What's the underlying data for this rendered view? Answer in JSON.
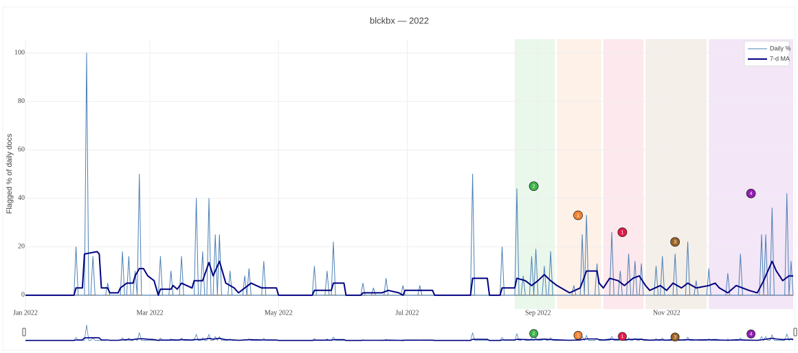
{
  "chart_data": {
    "type": "line",
    "title": "blckbx — 2022",
    "y_label": "Flagged % of daily docs",
    "xlim": [
      "2022-01-01",
      "2022-12-31"
    ],
    "xticks": [
      {
        "value": "2022-01-01",
        "label": "Jan 2022"
      },
      {
        "value": "2022-03-01",
        "label": "Mar 2022"
      },
      {
        "value": "2022-05-01",
        "label": "May 2022"
      },
      {
        "value": "2022-07-01",
        "label": "Jul 2022"
      },
      {
        "value": "2022-09-01",
        "label": "Sep 2022"
      },
      {
        "value": "2022-11-01",
        "label": "Nov 2022"
      }
    ],
    "ylim": [
      -5.7,
      105.7
    ],
    "yticks": [
      0,
      20,
      40,
      60,
      80,
      100
    ],
    "grid": true,
    "legend": "top-right",
    "range_slider": true,
    "series": [
      {
        "name": "Daily %",
        "color": "#4a7fb5",
        "width": 1,
        "x": [
          "2022-01-01",
          "2022-01-24",
          "2022-01-25",
          "2022-01-26",
          "2022-01-29",
          "2022-01-30",
          "2022-01-31",
          "2022-02-01",
          "2022-02-02",
          "2022-02-03",
          "2022-02-08",
          "2022-02-09",
          "2022-02-10",
          "2022-02-15",
          "2022-02-16",
          "2022-02-17",
          "2022-02-18",
          "2022-02-19",
          "2022-02-20",
          "2022-02-21",
          "2022-02-22",
          "2022-02-23",
          "2022-02-24",
          "2022-02-25",
          "2022-03-05",
          "2022-03-06",
          "2022-03-07",
          "2022-03-10",
          "2022-03-11",
          "2022-03-12",
          "2022-03-15",
          "2022-03-16",
          "2022-03-17",
          "2022-03-22",
          "2022-03-23",
          "2022-03-24",
          "2022-03-25",
          "2022-03-26",
          "2022-03-27",
          "2022-03-28",
          "2022-03-29",
          "2022-03-30",
          "2022-03-31",
          "2022-04-01",
          "2022-04-02",
          "2022-04-03",
          "2022-04-04",
          "2022-04-07",
          "2022-04-08",
          "2022-04-09",
          "2022-04-14",
          "2022-04-15",
          "2022-04-16",
          "2022-04-17",
          "2022-04-18",
          "2022-04-23",
          "2022-04-24",
          "2022-04-25",
          "2022-05-17",
          "2022-05-18",
          "2022-05-19",
          "2022-05-23",
          "2022-05-24",
          "2022-05-25",
          "2022-05-26",
          "2022-05-27",
          "2022-05-28",
          "2022-06-09",
          "2022-06-10",
          "2022-06-11",
          "2022-06-14",
          "2022-06-15",
          "2022-06-16",
          "2022-06-20",
          "2022-06-21",
          "2022-06-22",
          "2022-06-28",
          "2022-06-29",
          "2022-06-30",
          "2022-07-06",
          "2022-07-07",
          "2022-07-08",
          "2022-07-31",
          "2022-08-01",
          "2022-08-02",
          "2022-08-14",
          "2022-08-15",
          "2022-08-16",
          "2022-08-21",
          "2022-08-22",
          "2022-08-23",
          "2022-08-24",
          "2022-08-25",
          "2022-08-26",
          "2022-08-28",
          "2022-08-29",
          "2022-08-30",
          "2022-08-31",
          "2022-09-01",
          "2022-09-03",
          "2022-09-04",
          "2022-09-05",
          "2022-09-06",
          "2022-09-07",
          "2022-09-08",
          "2022-09-17",
          "2022-09-18",
          "2022-09-19",
          "2022-09-21",
          "2022-09-22",
          "2022-09-23",
          "2022-09-24",
          "2022-09-25",
          "2022-09-28",
          "2022-09-29",
          "2022-09-30",
          "2022-10-05",
          "2022-10-06",
          "2022-10-07",
          "2022-10-09",
          "2022-10-10",
          "2022-10-11",
          "2022-10-13",
          "2022-10-14",
          "2022-10-15",
          "2022-10-16",
          "2022-10-17",
          "2022-10-18",
          "2022-10-19",
          "2022-10-20",
          "2022-10-21",
          "2022-10-26",
          "2022-10-27",
          "2022-10-28",
          "2022-10-29",
          "2022-10-30",
          "2022-10-31",
          "2022-11-04",
          "2022-11-05",
          "2022-11-06",
          "2022-11-10",
          "2022-11-11",
          "2022-11-12",
          "2022-11-14",
          "2022-11-15",
          "2022-11-16",
          "2022-11-20",
          "2022-11-21",
          "2022-11-22",
          "2022-11-29",
          "2022-11-30",
          "2022-12-01",
          "2022-12-05",
          "2022-12-06",
          "2022-12-07",
          "2022-12-15",
          "2022-12-16",
          "2022-12-17",
          "2022-12-18",
          "2022-12-19",
          "2022-12-20",
          "2022-12-21",
          "2022-12-22",
          "2022-12-27",
          "2022-12-28",
          "2022-12-29",
          "2022-12-30",
          "2022-12-31"
        ],
        "values": [
          0,
          0,
          20,
          0,
          0,
          100,
          0,
          0,
          16,
          0,
          0,
          5,
          0,
          0,
          18,
          0,
          0,
          16,
          0,
          0,
          10,
          0,
          50,
          0,
          0,
          16,
          0,
          0,
          10,
          0,
          0,
          16,
          0,
          0,
          40,
          0,
          0,
          18,
          0,
          0,
          40,
          0,
          0,
          25,
          0,
          25,
          0,
          0,
          10,
          0,
          0,
          8,
          0,
          11,
          0,
          0,
          14,
          0,
          0,
          12,
          0,
          0,
          10,
          0,
          0,
          22,
          0,
          0,
          5,
          0,
          0,
          3,
          0,
          0,
          7,
          0,
          0,
          4,
          0,
          0,
          4,
          0,
          0,
          50,
          0,
          0,
          20,
          0,
          0,
          44,
          0,
          0,
          8,
          0,
          0,
          16,
          0,
          19,
          0,
          0,
          12,
          0,
          0,
          18,
          0,
          0,
          4,
          0,
          0,
          25,
          0,
          33,
          0,
          0,
          13,
          0,
          0,
          26,
          0,
          0,
          10,
          0,
          0,
          17,
          0,
          0,
          14,
          0,
          0,
          13,
          0,
          0,
          12,
          0,
          0,
          16,
          0,
          0,
          17,
          0,
          0,
          22,
          0,
          0,
          6,
          0,
          0,
          11,
          0,
          0,
          9,
          0,
          0,
          17,
          0,
          0,
          25,
          0,
          25,
          0,
          0,
          36,
          0,
          0,
          42,
          0,
          14,
          0
        ]
      },
      {
        "name": "7-d MA",
        "color": "#000080",
        "width": 2,
        "x": [
          "2022-01-01",
          "2022-01-24",
          "2022-01-25",
          "2022-01-28",
          "2022-01-29",
          "2022-02-04",
          "2022-02-05",
          "2022-02-06",
          "2022-02-09",
          "2022-02-10",
          "2022-02-14",
          "2022-02-15",
          "2022-02-18",
          "2022-02-21",
          "2022-02-22",
          "2022-02-24",
          "2022-02-26",
          "2022-02-28",
          "2022-03-03",
          "2022-03-05",
          "2022-03-06",
          "2022-03-11",
          "2022-03-12",
          "2022-03-14",
          "2022-03-16",
          "2022-03-21",
          "2022-03-22",
          "2022-03-26",
          "2022-03-29",
          "2022-03-31",
          "2022-04-03",
          "2022-04-04",
          "2022-04-06",
          "2022-04-10",
          "2022-04-12",
          "2022-04-15",
          "2022-04-18",
          "2022-04-23",
          "2022-04-30",
          "2022-05-01",
          "2022-05-17",
          "2022-05-18",
          "2022-05-26",
          "2022-05-27",
          "2022-06-01",
          "2022-06-02",
          "2022-06-09",
          "2022-06-10",
          "2022-06-19",
          "2022-06-22",
          "2022-06-27",
          "2022-06-29",
          "2022-06-30",
          "2022-07-13",
          "2022-07-14",
          "2022-07-31",
          "2022-08-01",
          "2022-08-08",
          "2022-08-09",
          "2022-08-14",
          "2022-08-15",
          "2022-08-21",
          "2022-08-22",
          "2022-08-26",
          "2022-08-29",
          "2022-09-01",
          "2022-09-04",
          "2022-09-07",
          "2022-09-10",
          "2022-09-16",
          "2022-09-21",
          "2022-09-24",
          "2022-09-29",
          "2022-09-30",
          "2022-10-02",
          "2022-10-05",
          "2022-10-09",
          "2022-10-12",
          "2022-10-16",
          "2022-10-19",
          "2022-10-22",
          "2022-10-24",
          "2022-10-29",
          "2022-11-01",
          "2022-11-04",
          "2022-11-08",
          "2022-11-11",
          "2022-11-15",
          "2022-11-21",
          "2022-11-24",
          "2022-11-26",
          "2022-11-30",
          "2022-12-04",
          "2022-12-10",
          "2022-12-14",
          "2022-12-17",
          "2022-12-21",
          "2022-12-23",
          "2022-12-26",
          "2022-12-29",
          "2022-12-31"
        ],
        "values": [
          0,
          0,
          3,
          3,
          17,
          18,
          17,
          3,
          3,
          1,
          1,
          3,
          5,
          5,
          8,
          11,
          11,
          8,
          6,
          0,
          2.5,
          2.5,
          4,
          2.5,
          5,
          3,
          6,
          6,
          13.5,
          8,
          14,
          11,
          5,
          3,
          1,
          3,
          5,
          3,
          3,
          0,
          0,
          2,
          2,
          5,
          5,
          0,
          0,
          1,
          1,
          2,
          1,
          0,
          2,
          2,
          0,
          0,
          7,
          7,
          0,
          0,
          3,
          3,
          7,
          6,
          4,
          6,
          8.5,
          6,
          4,
          1,
          3,
          10,
          10,
          5,
          3,
          7,
          6,
          4,
          7,
          8,
          4,
          2,
          4,
          2,
          5,
          3,
          5,
          3,
          4,
          5,
          3,
          1,
          4,
          2,
          1,
          6,
          14,
          10,
          6,
          8,
          8
        ]
      }
    ],
    "regions": [
      {
        "start": "2022-08-21",
        "end": "2022-09-09",
        "color": "rgba(60,180,75,0.11)"
      },
      {
        "start": "2022-09-10",
        "end": "2022-10-01",
        "color": "rgba(245,130,49,0.11)"
      },
      {
        "start": "2022-10-02",
        "end": "2022-10-21",
        "color": "rgba(230,25,75,0.10)"
      },
      {
        "start": "2022-10-22",
        "end": "2022-11-20",
        "color": "rgba(154,99,36,0.10)"
      },
      {
        "start": "2022-11-21",
        "end": "2022-12-31",
        "color": "rgba(145,30,180,0.11)"
      }
    ],
    "annotations": [
      {
        "x": "2022-08-30",
        "y": 45,
        "label": "2",
        "color": "#3cb44b"
      },
      {
        "x": "2022-09-20",
        "y": 33,
        "label": "1",
        "color": "#f58231"
      },
      {
        "x": "2022-10-11",
        "y": 26,
        "label": "1",
        "color": "#e6194b"
      },
      {
        "x": "2022-11-05",
        "y": 22,
        "label": "3",
        "color": "#9a6324"
      },
      {
        "x": "2022-12-11",
        "y": 42,
        "label": "4",
        "color": "#911eb4"
      }
    ]
  }
}
